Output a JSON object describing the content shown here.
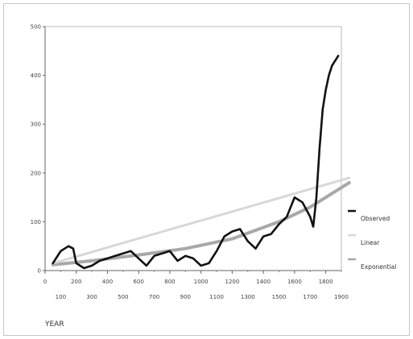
{
  "chart_data": {
    "type": "line",
    "title": "",
    "xlabel": "YEAR",
    "ylabel": "",
    "xlim": [
      0,
      1900
    ],
    "ylim": [
      0,
      500
    ],
    "y_ticks": [
      "0",
      "100",
      "200",
      "300",
      "400",
      "500"
    ],
    "x_ticks_upper": [
      "0",
      "200",
      "400",
      "600",
      "800",
      "1000",
      "1200",
      "1400",
      "1600",
      "1800"
    ],
    "x_ticks_lower": [
      "100",
      "300",
      "500",
      "700",
      "900",
      "1100",
      "1300",
      "1500",
      "1700",
      "1900"
    ],
    "legend_title": "",
    "legend_position": "right",
    "series": [
      {
        "name": "Observed",
        "style": "line",
        "color": "#111111",
        "x": [
          50,
          100,
          150,
          180,
          200,
          250,
          300,
          350,
          400,
          450,
          500,
          550,
          600,
          650,
          700,
          750,
          800,
          850,
          900,
          950,
          1000,
          1050,
          1100,
          1150,
          1200,
          1250,
          1300,
          1350,
          1400,
          1450,
          1500,
          1550,
          1600,
          1650,
          1700,
          1720,
          1740,
          1760,
          1780,
          1800,
          1820,
          1840,
          1860,
          1880
        ],
        "y": [
          15,
          40,
          50,
          45,
          15,
          5,
          10,
          20,
          25,
          30,
          35,
          40,
          25,
          10,
          30,
          35,
          40,
          20,
          30,
          25,
          10,
          15,
          40,
          70,
          80,
          85,
          60,
          45,
          70,
          75,
          95,
          110,
          150,
          140,
          110,
          90,
          150,
          250,
          330,
          370,
          400,
          420,
          430,
          440
        ]
      },
      {
        "name": "Linear",
        "style": "line",
        "color": "#d8d8d8",
        "x": [
          50,
          1950
        ],
        "y": [
          15,
          190
        ]
      },
      {
        "name": "Exponential",
        "style": "line",
        "color": "#a8a8a8",
        "x": [
          50,
          300,
          600,
          900,
          1200,
          1500,
          1700,
          1950
        ],
        "y": [
          12,
          20,
          32,
          45,
          65,
          100,
          130,
          180
        ]
      }
    ]
  }
}
